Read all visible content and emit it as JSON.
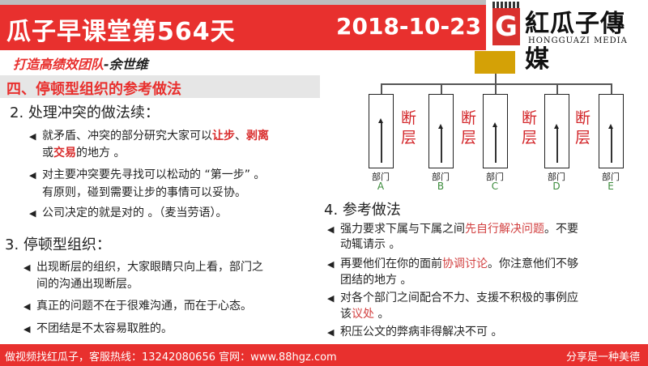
{
  "header": {
    "title": "瓜子早课堂第564天",
    "date": "2018-10-23"
  },
  "logo": {
    "letter": "G",
    "cn": "紅瓜子傳媒",
    "en": "HONGGUAZI MEDIA"
  },
  "subtitle": {
    "topic": "打造高绩效团队",
    "author": "-余世维"
  },
  "section": "四、停顿型组织的参考做法",
  "colors": {
    "brand_red": "#e8302e",
    "highlight_red": "#d92b2b",
    "top_box": "#d4a106",
    "dept_letter": "#3a8a3a"
  },
  "left": {
    "h2": "2.  处理冲突的做法续：",
    "items2": [
      [
        [
          "就矛盾、冲突的部分研究大家可以",
          ""
        ],
        [
          "让步",
          "red"
        ],
        [
          "、",
          ""
        ],
        [
          "剥离",
          "red"
        ]
      ],
      [
        [
          "或",
          ""
        ],
        [
          "交易",
          "red"
        ],
        [
          "的地方 。",
          ""
        ]
      ],
      [
        [
          "对主要冲突要先寻找可以松动的 “第一步”    。",
          ""
        ]
      ],
      [
        [
          "有原则，碰到需要让步的事情可以妥协。",
          ""
        ]
      ],
      [
        [
          "公司决定的就是对的 。（麦当劳语）。",
          ""
        ]
      ]
    ],
    "h3": "3.  停顿型组织：",
    "items3": [
      [
        [
          "出现断层的组织，大家眼睛只向上看，部门之",
          ""
        ]
      ],
      [
        [
          "间的沟通出现断层。",
          ""
        ]
      ],
      [
        [
          "真正的问题不在于很难沟通，而在于心态。",
          ""
        ]
      ],
      [
        [
          "不团结是不太容易取胜的。",
          ""
        ]
      ]
    ]
  },
  "right": {
    "h4": "4.  参考做法",
    "items4": [
      [
        [
          "强力要求下属与下属之间",
          ""
        ],
        [
          "先自行解决问题",
          "red2"
        ],
        [
          "。不要",
          ""
        ]
      ],
      [
        [
          "动辄请示 。",
          ""
        ]
      ],
      [
        [
          "再要他们在你的面前",
          ""
        ],
        [
          "协调讨论",
          "red2"
        ],
        [
          "。你注意他们不够",
          ""
        ]
      ],
      [
        [
          "团结的地方 。",
          ""
        ]
      ],
      [
        [
          "对各个部门之间配合不力、支援不积极的事例应",
          ""
        ]
      ],
      [
        [
          "该",
          ""
        ],
        [
          "议处",
          "red2"
        ],
        [
          " 。",
          ""
        ]
      ],
      [
        [
          "积压公文的弊病非得解决不可 。",
          ""
        ]
      ]
    ]
  },
  "diagram": {
    "departments": [
      {
        "label": "部门",
        "letter": "A"
      },
      {
        "label": "部门",
        "letter": "B"
      },
      {
        "label": "部门",
        "letter": "C"
      },
      {
        "label": "部门",
        "letter": "D"
      },
      {
        "label": "部门",
        "letter": "E"
      }
    ],
    "gap_label": [
      "断",
      "层"
    ]
  },
  "footer": {
    "left": "做视频找红瓜子，客服热线：13242080656  官网：www.88hgz.com",
    "right": "分享是一种美德"
  }
}
